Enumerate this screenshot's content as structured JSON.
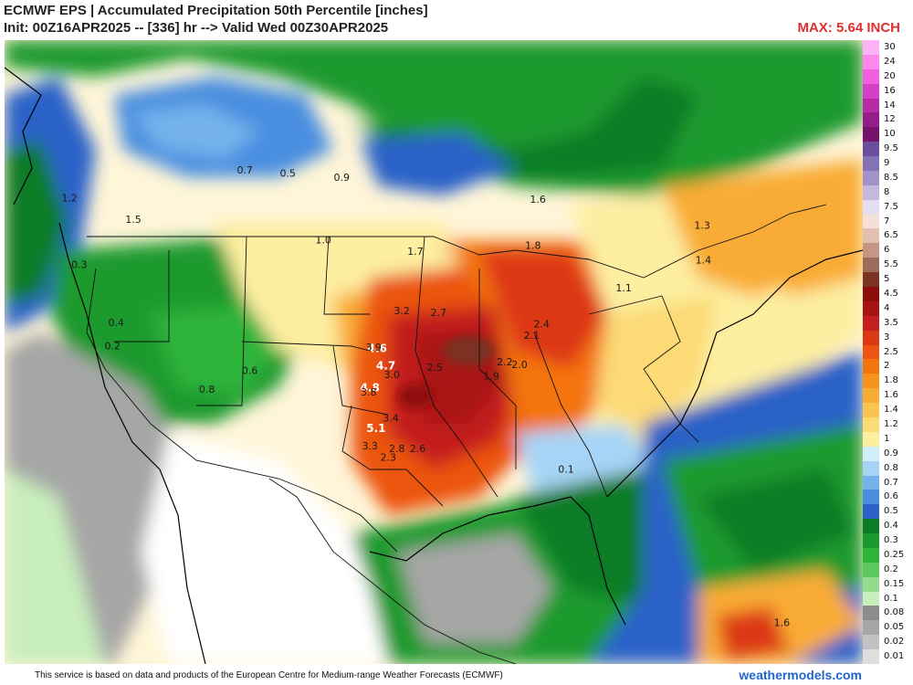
{
  "header": {
    "title_line1": "ECMWF EPS | Accumulated Precipitation 50th Percentile [inches]",
    "title_line2": "Init: 00Z16APR2025 -- [336] hr --> Valid Wed 00Z30APR2025",
    "max_label": "MAX: 5.64 INCH"
  },
  "legend": {
    "levels": [
      {
        "label": "30",
        "color": "#ffb3f7"
      },
      {
        "label": "24",
        "color": "#ff88ee"
      },
      {
        "label": "20",
        "color": "#f25ee0"
      },
      {
        "label": "16",
        "color": "#d63fc8"
      },
      {
        "label": "14",
        "color": "#b82aa8"
      },
      {
        "label": "12",
        "color": "#951c8a"
      },
      {
        "label": "10",
        "color": "#74126c"
      },
      {
        "label": "9.5",
        "color": "#6b4f9c"
      },
      {
        "label": "9",
        "color": "#8472b5"
      },
      {
        "label": "8.5",
        "color": "#a192cb"
      },
      {
        "label": "8",
        "color": "#c4b8de"
      },
      {
        "label": "7.5",
        "color": "#e5ddf0"
      },
      {
        "label": "7",
        "color": "#f4e0d8"
      },
      {
        "label": "6.5",
        "color": "#e2bfb0"
      },
      {
        "label": "6",
        "color": "#c59684"
      },
      {
        "label": "5.5",
        "color": "#9e6b5a"
      },
      {
        "label": "5",
        "color": "#7a3324"
      },
      {
        "label": "4.5",
        "color": "#8f0c0c"
      },
      {
        "label": "4",
        "color": "#a81414"
      },
      {
        "label": "3.5",
        "color": "#c41e1e"
      },
      {
        "label": "3",
        "color": "#dd3814"
      },
      {
        "label": "2.5",
        "color": "#ec5410"
      },
      {
        "label": "2",
        "color": "#f4740c"
      },
      {
        "label": "1.8",
        "color": "#f8921a"
      },
      {
        "label": "1.6",
        "color": "#f9ac34"
      },
      {
        "label": "1.4",
        "color": "#fbc350"
      },
      {
        "label": "1.2",
        "color": "#fcda74"
      },
      {
        "label": "1",
        "color": "#fdeea0"
      },
      {
        "label": "0.9",
        "color": "#d3eefb"
      },
      {
        "label": "0.8",
        "color": "#a6d4f6"
      },
      {
        "label": "0.7",
        "color": "#74b2ec"
      },
      {
        "label": "0.6",
        "color": "#4a8ee0"
      },
      {
        "label": "0.5",
        "color": "#2a62c8"
      },
      {
        "label": "0.4",
        "color": "#0a7c28"
      },
      {
        "label": "0.3",
        "color": "#1a9a2e"
      },
      {
        "label": "0.25",
        "color": "#2fb43a"
      },
      {
        "label": "0.2",
        "color": "#5cc85c"
      },
      {
        "label": "0.15",
        "color": "#94dc8c"
      },
      {
        "label": "0.1",
        "color": "#c8eebc"
      },
      {
        "label": "0.08",
        "color": "#8c8c8c"
      },
      {
        "label": "0.05",
        "color": "#a6a6a6"
      },
      {
        "label": "0.02",
        "color": "#c2c2c2"
      },
      {
        "label": "0.01",
        "color": "#dedede"
      }
    ]
  },
  "map_labels": [
    {
      "text": "4.8",
      "x": 98.2,
      "y": 33.8,
      "emph": true
    },
    {
      "text": "5.1",
      "x": 97.7,
      "y": 31.0,
      "emph": true
    },
    {
      "text": "4.7",
      "x": 96.9,
      "y": 35.3,
      "emph": true
    },
    {
      "text": "4.6",
      "x": 97.6,
      "y": 36.5,
      "emph": true
    },
    {
      "text": "3.9",
      "x": 97.9,
      "y": 36.6
    },
    {
      "text": "3.8",
      "x": 98.3,
      "y": 33.5
    },
    {
      "text": "3.2",
      "x": 95.6,
      "y": 39.1
    },
    {
      "text": "3.0",
      "x": 96.4,
      "y": 34.7
    },
    {
      "text": "2.5",
      "x": 92.9,
      "y": 35.2
    },
    {
      "text": "2.7",
      "x": 92.6,
      "y": 39.0
    },
    {
      "text": "2.2",
      "x": 87.2,
      "y": 35.6
    },
    {
      "text": "2.0",
      "x": 86.0,
      "y": 35.4
    },
    {
      "text": "1.9",
      "x": 88.3,
      "y": 34.6
    },
    {
      "text": "1.7",
      "x": 94.5,
      "y": 43.2
    },
    {
      "text": "1.5",
      "x": 117.5,
      "y": 45.4
    },
    {
      "text": "1.2",
      "x": 122.7,
      "y": 46.9
    },
    {
      "text": "1.0",
      "x": 102.0,
      "y": 44.0
    },
    {
      "text": "0.9",
      "x": 100.5,
      "y": 48.3
    },
    {
      "text": "0.8",
      "x": 111.5,
      "y": 33.7
    },
    {
      "text": "0.7",
      "x": 108.4,
      "y": 48.8
    },
    {
      "text": "0.6",
      "x": 108.0,
      "y": 35.0
    },
    {
      "text": "0.5",
      "x": 104.9,
      "y": 48.6
    },
    {
      "text": "0.4",
      "x": 118.9,
      "y": 38.3
    },
    {
      "text": "0.3",
      "x": 121.9,
      "y": 42.3
    },
    {
      "text": "0.2",
      "x": 119.2,
      "y": 36.7
    },
    {
      "text": "1.4",
      "x": 71.0,
      "y": 42.6
    },
    {
      "text": "1.3",
      "x": 71.1,
      "y": 45.0
    },
    {
      "text": "1.1",
      "x": 77.5,
      "y": 40.7
    },
    {
      "text": "2.4",
      "x": 84.2,
      "y": 38.2
    },
    {
      "text": "2.1",
      "x": 85.0,
      "y": 37.4
    },
    {
      "text": "1.6",
      "x": 84.5,
      "y": 46.8
    },
    {
      "text": "1.8",
      "x": 84.9,
      "y": 43.6
    },
    {
      "text": "2.3",
      "x": 96.7,
      "y": 29.0
    },
    {
      "text": "2.8",
      "x": 96.0,
      "y": 29.6
    },
    {
      "text": "2.6",
      "x": 94.3,
      "y": 29.6
    },
    {
      "text": "3.3",
      "x": 98.2,
      "y": 29.8
    },
    {
      "text": "3.4",
      "x": 96.5,
      "y": 31.7
    },
    {
      "text": "0.1",
      "x": 82.2,
      "y": 28.2
    },
    {
      "text": "1.6",
      "x": 64.6,
      "y": 17.6
    }
  ],
  "footer": {
    "attribution": "This service is based on data and products of the European Centre for Medium-range Weather Forecasts (ECMWF)",
    "brand": "weathermodels.com"
  }
}
